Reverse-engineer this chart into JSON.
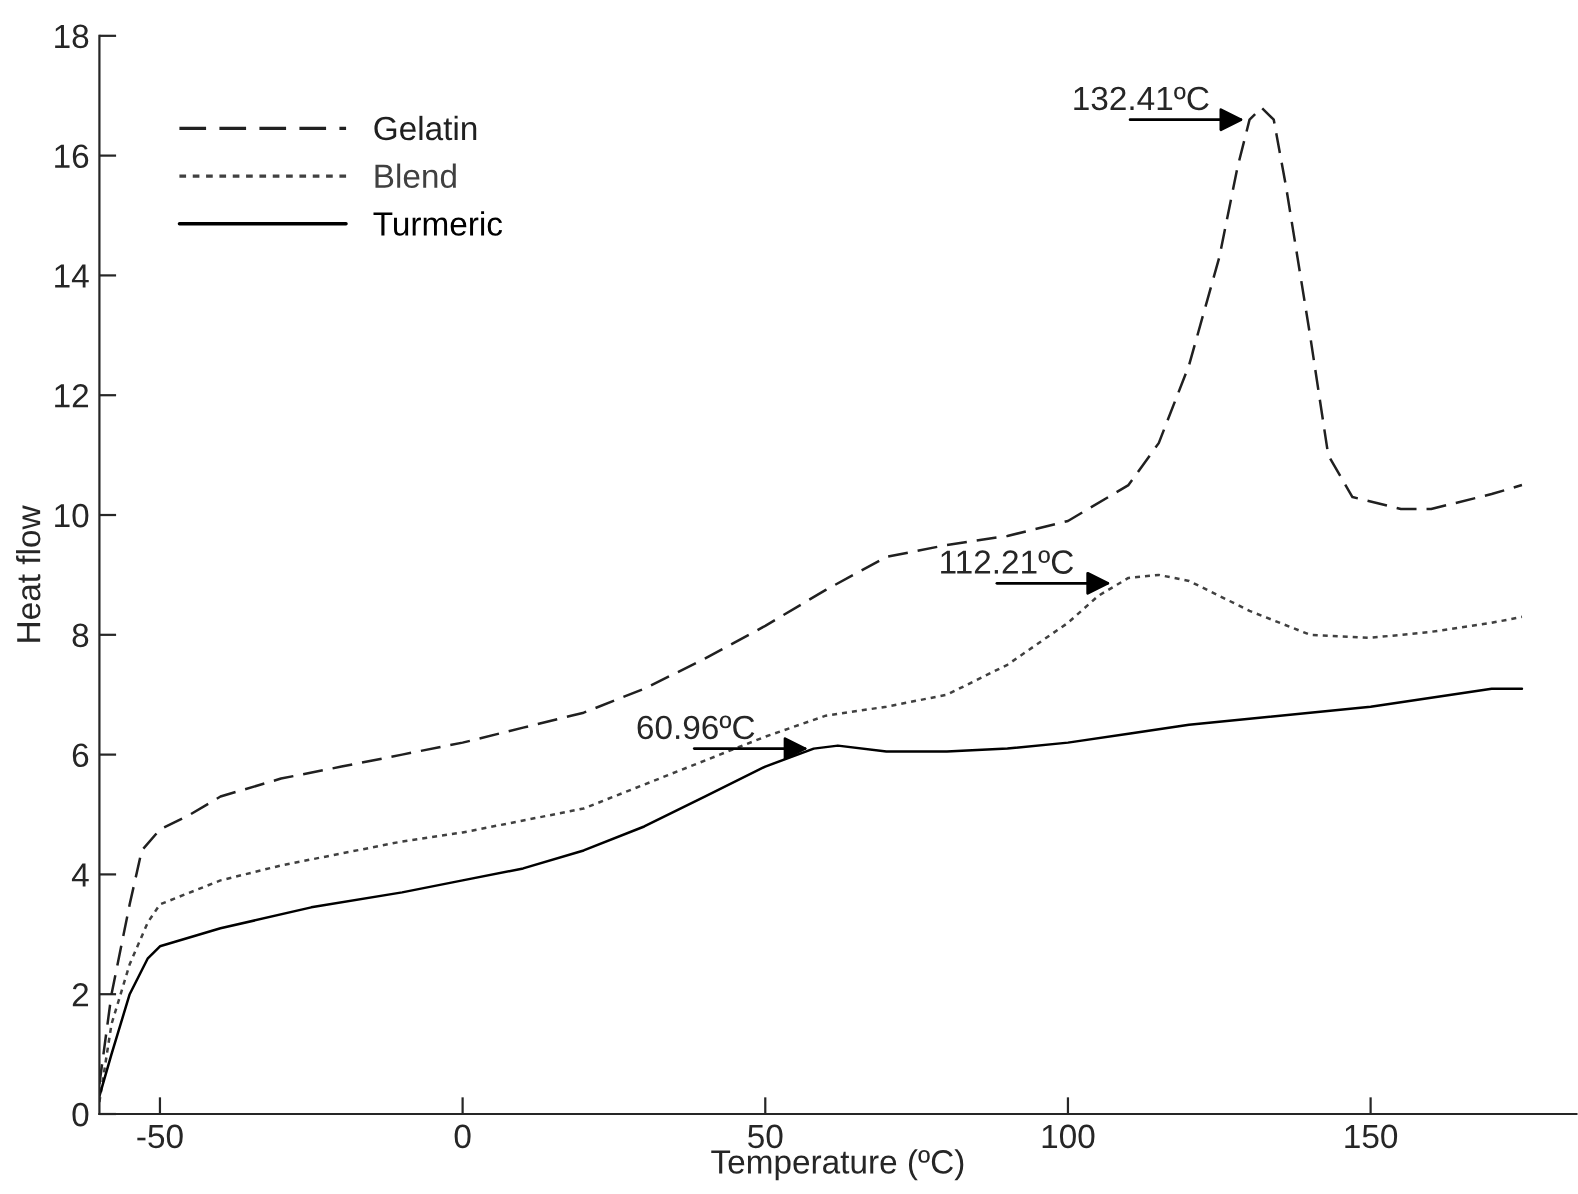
{
  "chart_data": {
    "type": "line",
    "xlabel": "Temperature (ºC)",
    "ylabel": "Heat flow",
    "xlim": [
      -60,
      184
    ],
    "ylim": [
      0,
      18
    ],
    "xticks": [
      -50,
      0,
      50,
      100,
      150
    ],
    "yticks": [
      0,
      2,
      4,
      6,
      8,
      10,
      12,
      14,
      16,
      18
    ],
    "grid": false,
    "legend": "top left",
    "marker": "none",
    "series": [
      {
        "name": "Gelatin",
        "color": "#202020",
        "line_style": "dashed",
        "x": [
          -60,
          -58,
          -55,
          -53,
          -50,
          -45,
          -40,
          -30,
          -20,
          -10,
          0,
          10,
          20,
          30,
          40,
          50,
          60,
          70,
          80,
          90,
          100,
          110,
          115,
          120,
          125,
          128,
          130,
          132,
          134,
          136,
          140,
          143,
          147,
          155,
          160,
          170,
          175
        ],
        "values": [
          0.5,
          2.0,
          3.5,
          4.4,
          4.75,
          5.0,
          5.3,
          5.6,
          5.8,
          6.0,
          6.2,
          6.45,
          6.7,
          7.1,
          7.6,
          8.15,
          8.75,
          9.3,
          9.5,
          9.65,
          9.9,
          10.5,
          11.2,
          12.5,
          14.3,
          15.8,
          16.6,
          16.8,
          16.6,
          15.5,
          13.0,
          11.0,
          10.3,
          10.1,
          10.1,
          10.35,
          10.5
        ]
      },
      {
        "name": "Blend",
        "color": "#404040",
        "line_style": "dotted",
        "x": [
          -60,
          -58,
          -55,
          -52,
          -50,
          -40,
          -30,
          -20,
          -10,
          0,
          10,
          20,
          30,
          40,
          50,
          60,
          70,
          80,
          90,
          100,
          105,
          110,
          115,
          120,
          130,
          140,
          150,
          160,
          170,
          175
        ],
        "values": [
          0.2,
          1.5,
          2.5,
          3.2,
          3.5,
          3.9,
          4.15,
          4.35,
          4.55,
          4.7,
          4.9,
          5.1,
          5.5,
          5.9,
          6.3,
          6.65,
          6.8,
          7.0,
          7.5,
          8.2,
          8.65,
          8.95,
          9.0,
          8.9,
          8.4,
          8.0,
          7.95,
          8.05,
          8.2,
          8.3
        ]
      },
      {
        "name": "Turmeric",
        "color": "#000000",
        "line_style": "solid",
        "x": [
          -60,
          -58,
          -55,
          -52,
          -50,
          -40,
          -25,
          -10,
          0,
          10,
          20,
          30,
          40,
          50,
          58,
          62,
          70,
          80,
          90,
          100,
          110,
          120,
          130,
          140,
          150,
          160,
          170,
          175
        ],
        "values": [
          0.3,
          1.0,
          2.0,
          2.6,
          2.8,
          3.1,
          3.45,
          3.7,
          3.9,
          4.1,
          4.4,
          4.8,
          5.3,
          5.8,
          6.1,
          6.15,
          6.05,
          6.05,
          6.1,
          6.2,
          6.35,
          6.5,
          6.6,
          6.7,
          6.8,
          6.95,
          7.1,
          7.1
        ]
      }
    ],
    "annotations": [
      {
        "text": "132.41ºC",
        "x": 130,
        "y": 16.6
      },
      {
        "text": "112.21ºC",
        "x": 108,
        "y": 8.86
      },
      {
        "text": "60.96ºC",
        "x": 58,
        "y": 6.1
      }
    ]
  }
}
